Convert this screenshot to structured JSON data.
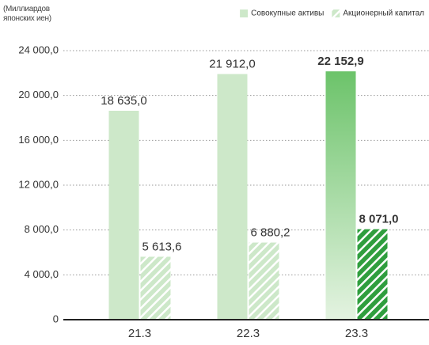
{
  "chart_data": {
    "type": "bar",
    "y_label": "(Миллиардов японских иен)",
    "categories": [
      "21.3",
      "22.3",
      "23.3"
    ],
    "highlight": "23.3",
    "series": [
      {
        "name": "Совокупные активы",
        "color": "#cde8c9",
        "highlight_color": "#6cc36a",
        "hatch": false,
        "values": [
          18635.0,
          21912.0,
          22152.9
        ],
        "value_labels": [
          "18 635,0",
          "21 912,0",
          "22 152,9"
        ]
      },
      {
        "name": "Акционерный капитал",
        "color": "#cde8c9",
        "highlight_color": "#2f9e3e",
        "hatch": true,
        "values": [
          5613.6,
          6880.2,
          8071.0
        ],
        "value_labels": [
          "5 613,6",
          "6 880,2",
          "8 071,0"
        ]
      }
    ],
    "ylim": [
      0,
      24000
    ],
    "yticks": [
      {
        "value": 0,
        "label": "0"
      },
      {
        "value": 4000,
        "label": "4 000,0"
      },
      {
        "value": 8000,
        "label": "8 000,0"
      },
      {
        "value": 12000,
        "label": "12 000,0"
      },
      {
        "value": 16000,
        "label": "16 000,0"
      },
      {
        "value": 20000,
        "label": "20 000,0"
      },
      {
        "value": 24000,
        "label": "24 000,0"
      }
    ],
    "grid": true,
    "legend": "top-right"
  }
}
